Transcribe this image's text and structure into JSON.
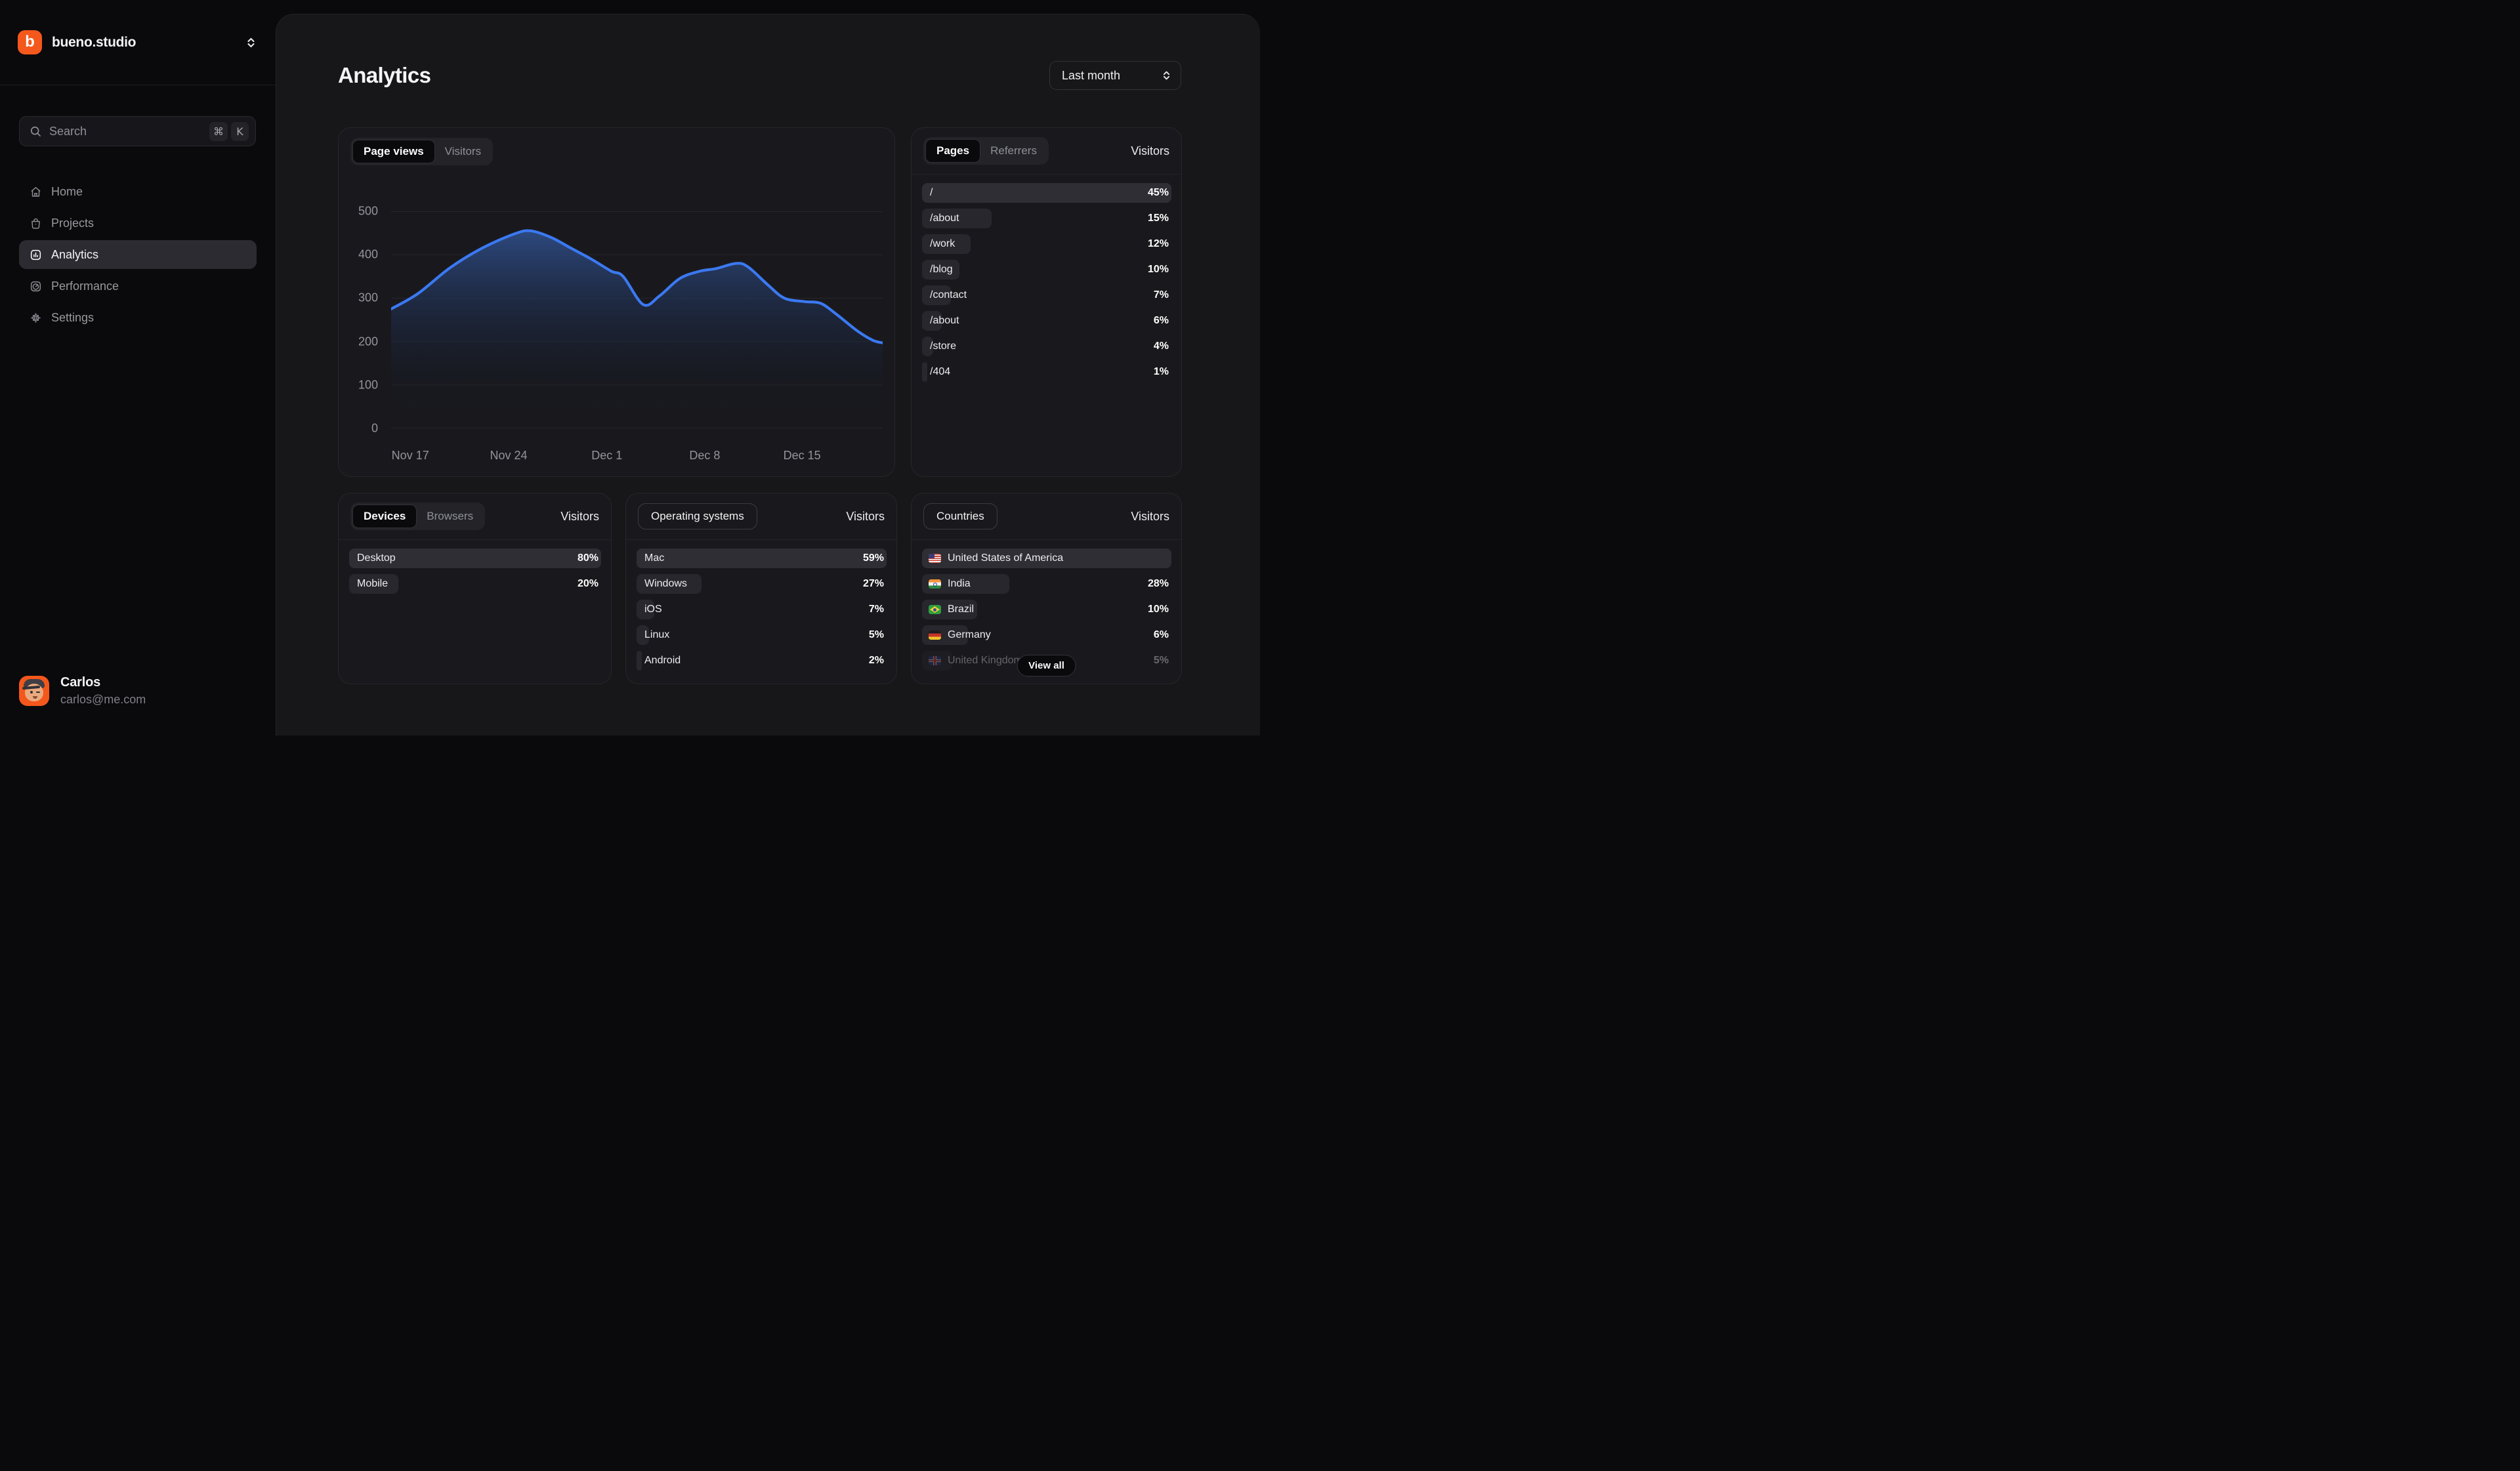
{
  "sidebar": {
    "workspace": "bueno.studio",
    "search": {
      "placeholder": "Search",
      "shortcut_mod": "⌘",
      "shortcut_key": "K"
    },
    "nav": [
      {
        "label": "Home",
        "icon": "home",
        "active": false
      },
      {
        "label": "Projects",
        "icon": "projects",
        "active": false
      },
      {
        "label": "Analytics",
        "icon": "analytics",
        "active": true
      },
      {
        "label": "Performance",
        "icon": "performance",
        "active": false
      },
      {
        "label": "Settings",
        "icon": "settings",
        "active": false
      }
    ],
    "user": {
      "name": "Carlos",
      "email": "carlos@me.com"
    }
  },
  "header": {
    "title": "Analytics",
    "range_selector": "Last month"
  },
  "chart_card": {
    "tabs": [
      {
        "label": "Page views",
        "active": true
      },
      {
        "label": "Visitors",
        "active": false
      }
    ]
  },
  "chart_data": {
    "type": "area",
    "series_name": "Page views",
    "xlabel": "",
    "ylabel": "",
    "ylim": [
      0,
      500
    ],
    "y_ticks": [
      0,
      100,
      200,
      300,
      400,
      500
    ],
    "grid": "horizontal",
    "legend": "none",
    "line_color": "#3b79f2",
    "fill_top": "#2e4c85",
    "fill_bottom": "#10131f",
    "x_ticks": [
      {
        "label": "Nov 17",
        "x": 0.039
      },
      {
        "label": "Nov 24",
        "x": 0.239
      },
      {
        "label": "Dec 1",
        "x": 0.439
      },
      {
        "label": "Dec 8",
        "x": 0.638
      },
      {
        "label": "Dec 15",
        "x": 0.836
      }
    ],
    "points": [
      [
        0.0,
        275
      ],
      [
        0.054,
        310
      ],
      [
        0.12,
        370
      ],
      [
        0.185,
        415
      ],
      [
        0.251,
        448
      ],
      [
        0.284,
        455
      ],
      [
        0.325,
        440
      ],
      [
        0.366,
        415
      ],
      [
        0.407,
        390
      ],
      [
        0.448,
        362
      ],
      [
        0.472,
        350
      ],
      [
        0.513,
        285
      ],
      [
        0.546,
        305
      ],
      [
        0.587,
        345
      ],
      [
        0.628,
        362
      ],
      [
        0.661,
        368
      ],
      [
        0.702,
        380
      ],
      [
        0.726,
        372
      ],
      [
        0.767,
        330
      ],
      [
        0.8,
        300
      ],
      [
        0.841,
        292
      ],
      [
        0.874,
        288
      ],
      [
        0.907,
        262
      ],
      [
        0.948,
        225
      ],
      [
        0.98,
        203
      ],
      [
        1.0,
        197
      ]
    ]
  },
  "panels": {
    "pages": {
      "tab_active": "Pages",
      "tab_inactive": "Referrers",
      "value_header": "Visitors",
      "rows": [
        {
          "label": "/",
          "value": "45%",
          "bar": 100
        },
        {
          "label": "/about",
          "value": "15%",
          "bar": 28
        },
        {
          "label": "/work",
          "value": "12%",
          "bar": 19.5
        },
        {
          "label": "/blog",
          "value": "10%",
          "bar": 15
        },
        {
          "label": "/contact",
          "value": "7%",
          "bar": 11.5
        },
        {
          "label": "/about",
          "value": "6%",
          "bar": 8
        },
        {
          "label": "/store",
          "value": "4%",
          "bar": 4.5
        },
        {
          "label": "/404",
          "value": "1%",
          "bar": 2.2
        }
      ]
    },
    "devices": {
      "tab_active": "Devices",
      "tab_inactive": "Browsers",
      "value_header": "Visitors",
      "rows": [
        {
          "label": "Desktop",
          "value": "80%",
          "bar": 100
        },
        {
          "label": "Mobile",
          "value": "20%",
          "bar": 19.5
        }
      ]
    },
    "os": {
      "title": "Operating systems",
      "value_header": "Visitors",
      "rows": [
        {
          "label": "Mac",
          "value": "59%",
          "bar": 100
        },
        {
          "label": "Windows",
          "value": "27%",
          "bar": 26
        },
        {
          "label": "iOS",
          "value": "7%",
          "bar": 7
        },
        {
          "label": "Linux",
          "value": "5%",
          "bar": 5
        },
        {
          "label": "Android",
          "value": "2%",
          "bar": 2.2
        }
      ]
    },
    "countries": {
      "title": "Countries",
      "value_header": "Visitors",
      "view_all_label": "View all",
      "rows": [
        {
          "label": "United States of America",
          "value": "",
          "bar": 100,
          "flag": "us"
        },
        {
          "label": "India",
          "value": "28%",
          "bar": 35,
          "flag": "in"
        },
        {
          "label": "Brazil",
          "value": "10%",
          "bar": 22,
          "flag": "br"
        },
        {
          "label": "Germany",
          "value": "6%",
          "bar": 18.5,
          "flag": "de"
        },
        {
          "label": "United Kingdom",
          "value": "5%",
          "bar": 12,
          "flag": "gb",
          "faded": true
        }
      ]
    }
  }
}
